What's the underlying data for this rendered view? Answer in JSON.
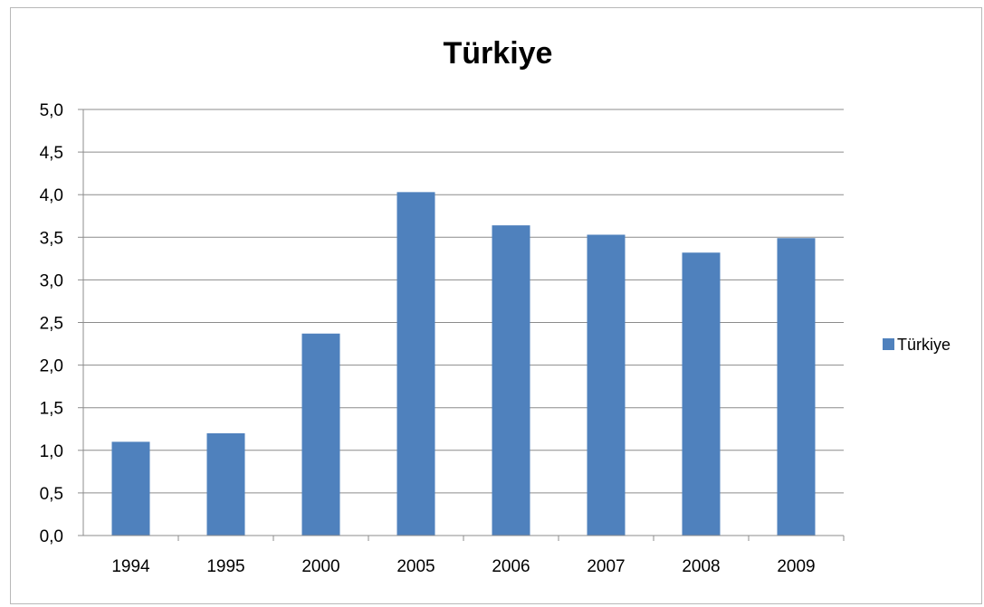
{
  "chart_data": {
    "type": "bar",
    "title": "Türkiye",
    "categories": [
      "1994",
      "1995",
      "2000",
      "2005",
      "2006",
      "2007",
      "2008",
      "2009"
    ],
    "series": [
      {
        "name": "Türkiye",
        "values": [
          1.1,
          1.2,
          2.37,
          4.03,
          3.64,
          3.53,
          3.32,
          3.49
        ],
        "color": "#4f81bd"
      }
    ],
    "y_ticks": [
      "0,0",
      "0,5",
      "1,0",
      "1,5",
      "2,0",
      "2,5",
      "3,0",
      "3,5",
      "4,0",
      "4,5",
      "5,0"
    ],
    "ylim": [
      0,
      5
    ],
    "grid": true,
    "legend_position": "right",
    "xlabel": "",
    "ylabel": ""
  }
}
